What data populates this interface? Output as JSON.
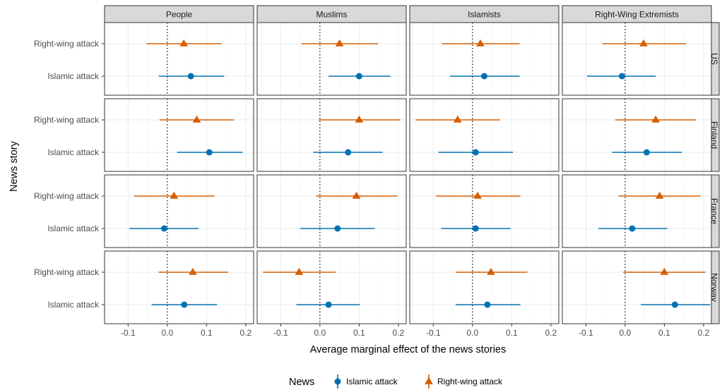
{
  "chart_data": {
    "type": "dot-interval",
    "xlabel": "Average marginal effect of the news stories",
    "ylabel": "News story",
    "xlim": [
      -0.16,
      0.22
    ],
    "xticks": [
      -0.1,
      0.0,
      0.1,
      0.2
    ],
    "xtick_labels": [
      "-0.1",
      "0.0",
      "0.1",
      "0.2"
    ],
    "grid": true,
    "reference_line": {
      "x": 0,
      "style": "dotted"
    },
    "facet_columns": [
      "People",
      "Muslims",
      "Islamists",
      "Right-Wing Extremists"
    ],
    "facet_rows": [
      "US",
      "Finland",
      "France",
      "Norway"
    ],
    "categories": [
      "Right-wing attack",
      "Islamic attack"
    ],
    "legend": {
      "title": "News",
      "position": "bottom",
      "items": [
        {
          "label": "Islamic attack",
          "color": "#0072B2",
          "shape": "circle"
        },
        {
          "label": "Right-wing attack",
          "color": "#D55E00",
          "shape": "triangle"
        }
      ]
    },
    "series": [
      {
        "name": "Right-wing attack",
        "color": "#D55E00",
        "shape": "triangle",
        "points": [
          {
            "row": "US",
            "column": "People",
            "estimate": 0.042,
            "lower": -0.053,
            "upper": 0.138
          },
          {
            "row": "US",
            "column": "Muslims",
            "estimate": 0.05,
            "lower": -0.047,
            "upper": 0.148
          },
          {
            "row": "US",
            "column": "Islamists",
            "estimate": 0.02,
            "lower": -0.078,
            "upper": 0.12
          },
          {
            "row": "US",
            "column": "Right-Wing Extremists",
            "estimate": 0.047,
            "lower": -0.058,
            "upper": 0.155
          },
          {
            "row": "Finland",
            "column": "People",
            "estimate": 0.075,
            "lower": -0.02,
            "upper": 0.17
          },
          {
            "row": "Finland",
            "column": "Muslims",
            "estimate": 0.1,
            "lower": -0.003,
            "upper": 0.205
          },
          {
            "row": "Finland",
            "column": "Islamists",
            "estimate": -0.038,
            "lower": -0.145,
            "upper": 0.07
          },
          {
            "row": "Finland",
            "column": "Right-Wing Extremists",
            "estimate": 0.078,
            "lower": -0.025,
            "upper": 0.18
          },
          {
            "row": "France",
            "column": "People",
            "estimate": 0.017,
            "lower": -0.085,
            "upper": 0.12
          },
          {
            "row": "France",
            "column": "Muslims",
            "estimate": 0.093,
            "lower": -0.01,
            "upper": 0.197
          },
          {
            "row": "France",
            "column": "Islamists",
            "estimate": 0.013,
            "lower": -0.093,
            "upper": 0.122
          },
          {
            "row": "France",
            "column": "Right-Wing Extremists",
            "estimate": 0.088,
            "lower": -0.017,
            "upper": 0.192
          },
          {
            "row": "Norway",
            "column": "People",
            "estimate": 0.065,
            "lower": -0.022,
            "upper": 0.155
          },
          {
            "row": "Norway",
            "column": "Muslims",
            "estimate": -0.053,
            "lower": -0.145,
            "upper": 0.04
          },
          {
            "row": "Norway",
            "column": "Islamists",
            "estimate": 0.047,
            "lower": -0.043,
            "upper": 0.14
          },
          {
            "row": "Norway",
            "column": "Right-Wing Extremists",
            "estimate": 0.1,
            "lower": -0.005,
            "upper": 0.205
          }
        ]
      },
      {
        "name": "Islamic attack",
        "color": "#0072B2",
        "shape": "circle",
        "points": [
          {
            "row": "US",
            "column": "People",
            "estimate": 0.06,
            "lower": -0.022,
            "upper": 0.145
          },
          {
            "row": "US",
            "column": "Muslims",
            "estimate": 0.1,
            "lower": 0.022,
            "upper": 0.18
          },
          {
            "row": "US",
            "column": "Islamists",
            "estimate": 0.03,
            "lower": -0.057,
            "upper": 0.12
          },
          {
            "row": "US",
            "column": "Right-Wing Extremists",
            "estimate": -0.008,
            "lower": -0.097,
            "upper": 0.078
          },
          {
            "row": "Finland",
            "column": "People",
            "estimate": 0.107,
            "lower": 0.025,
            "upper": 0.192
          },
          {
            "row": "Finland",
            "column": "Muslims",
            "estimate": 0.072,
            "lower": -0.017,
            "upper": 0.16
          },
          {
            "row": "Finland",
            "column": "Islamists",
            "estimate": 0.008,
            "lower": -0.087,
            "upper": 0.103
          },
          {
            "row": "Finland",
            "column": "Right-Wing Extremists",
            "estimate": 0.055,
            "lower": -0.033,
            "upper": 0.145
          },
          {
            "row": "France",
            "column": "People",
            "estimate": -0.008,
            "lower": -0.097,
            "upper": 0.08
          },
          {
            "row": "France",
            "column": "Muslims",
            "estimate": 0.045,
            "lower": -0.05,
            "upper": 0.14
          },
          {
            "row": "France",
            "column": "Islamists",
            "estimate": 0.008,
            "lower": -0.08,
            "upper": 0.097
          },
          {
            "row": "France",
            "column": "Right-Wing Extremists",
            "estimate": 0.018,
            "lower": -0.068,
            "upper": 0.107
          },
          {
            "row": "Norway",
            "column": "People",
            "estimate": 0.043,
            "lower": -0.04,
            "upper": 0.127
          },
          {
            "row": "Norway",
            "column": "Muslims",
            "estimate": 0.022,
            "lower": -0.06,
            "upper": 0.102
          },
          {
            "row": "Norway",
            "column": "Islamists",
            "estimate": 0.038,
            "lower": -0.043,
            "upper": 0.122
          },
          {
            "row": "Norway",
            "column": "Right-Wing Extremists",
            "estimate": 0.127,
            "lower": 0.04,
            "upper": 0.217
          }
        ]
      }
    ]
  }
}
